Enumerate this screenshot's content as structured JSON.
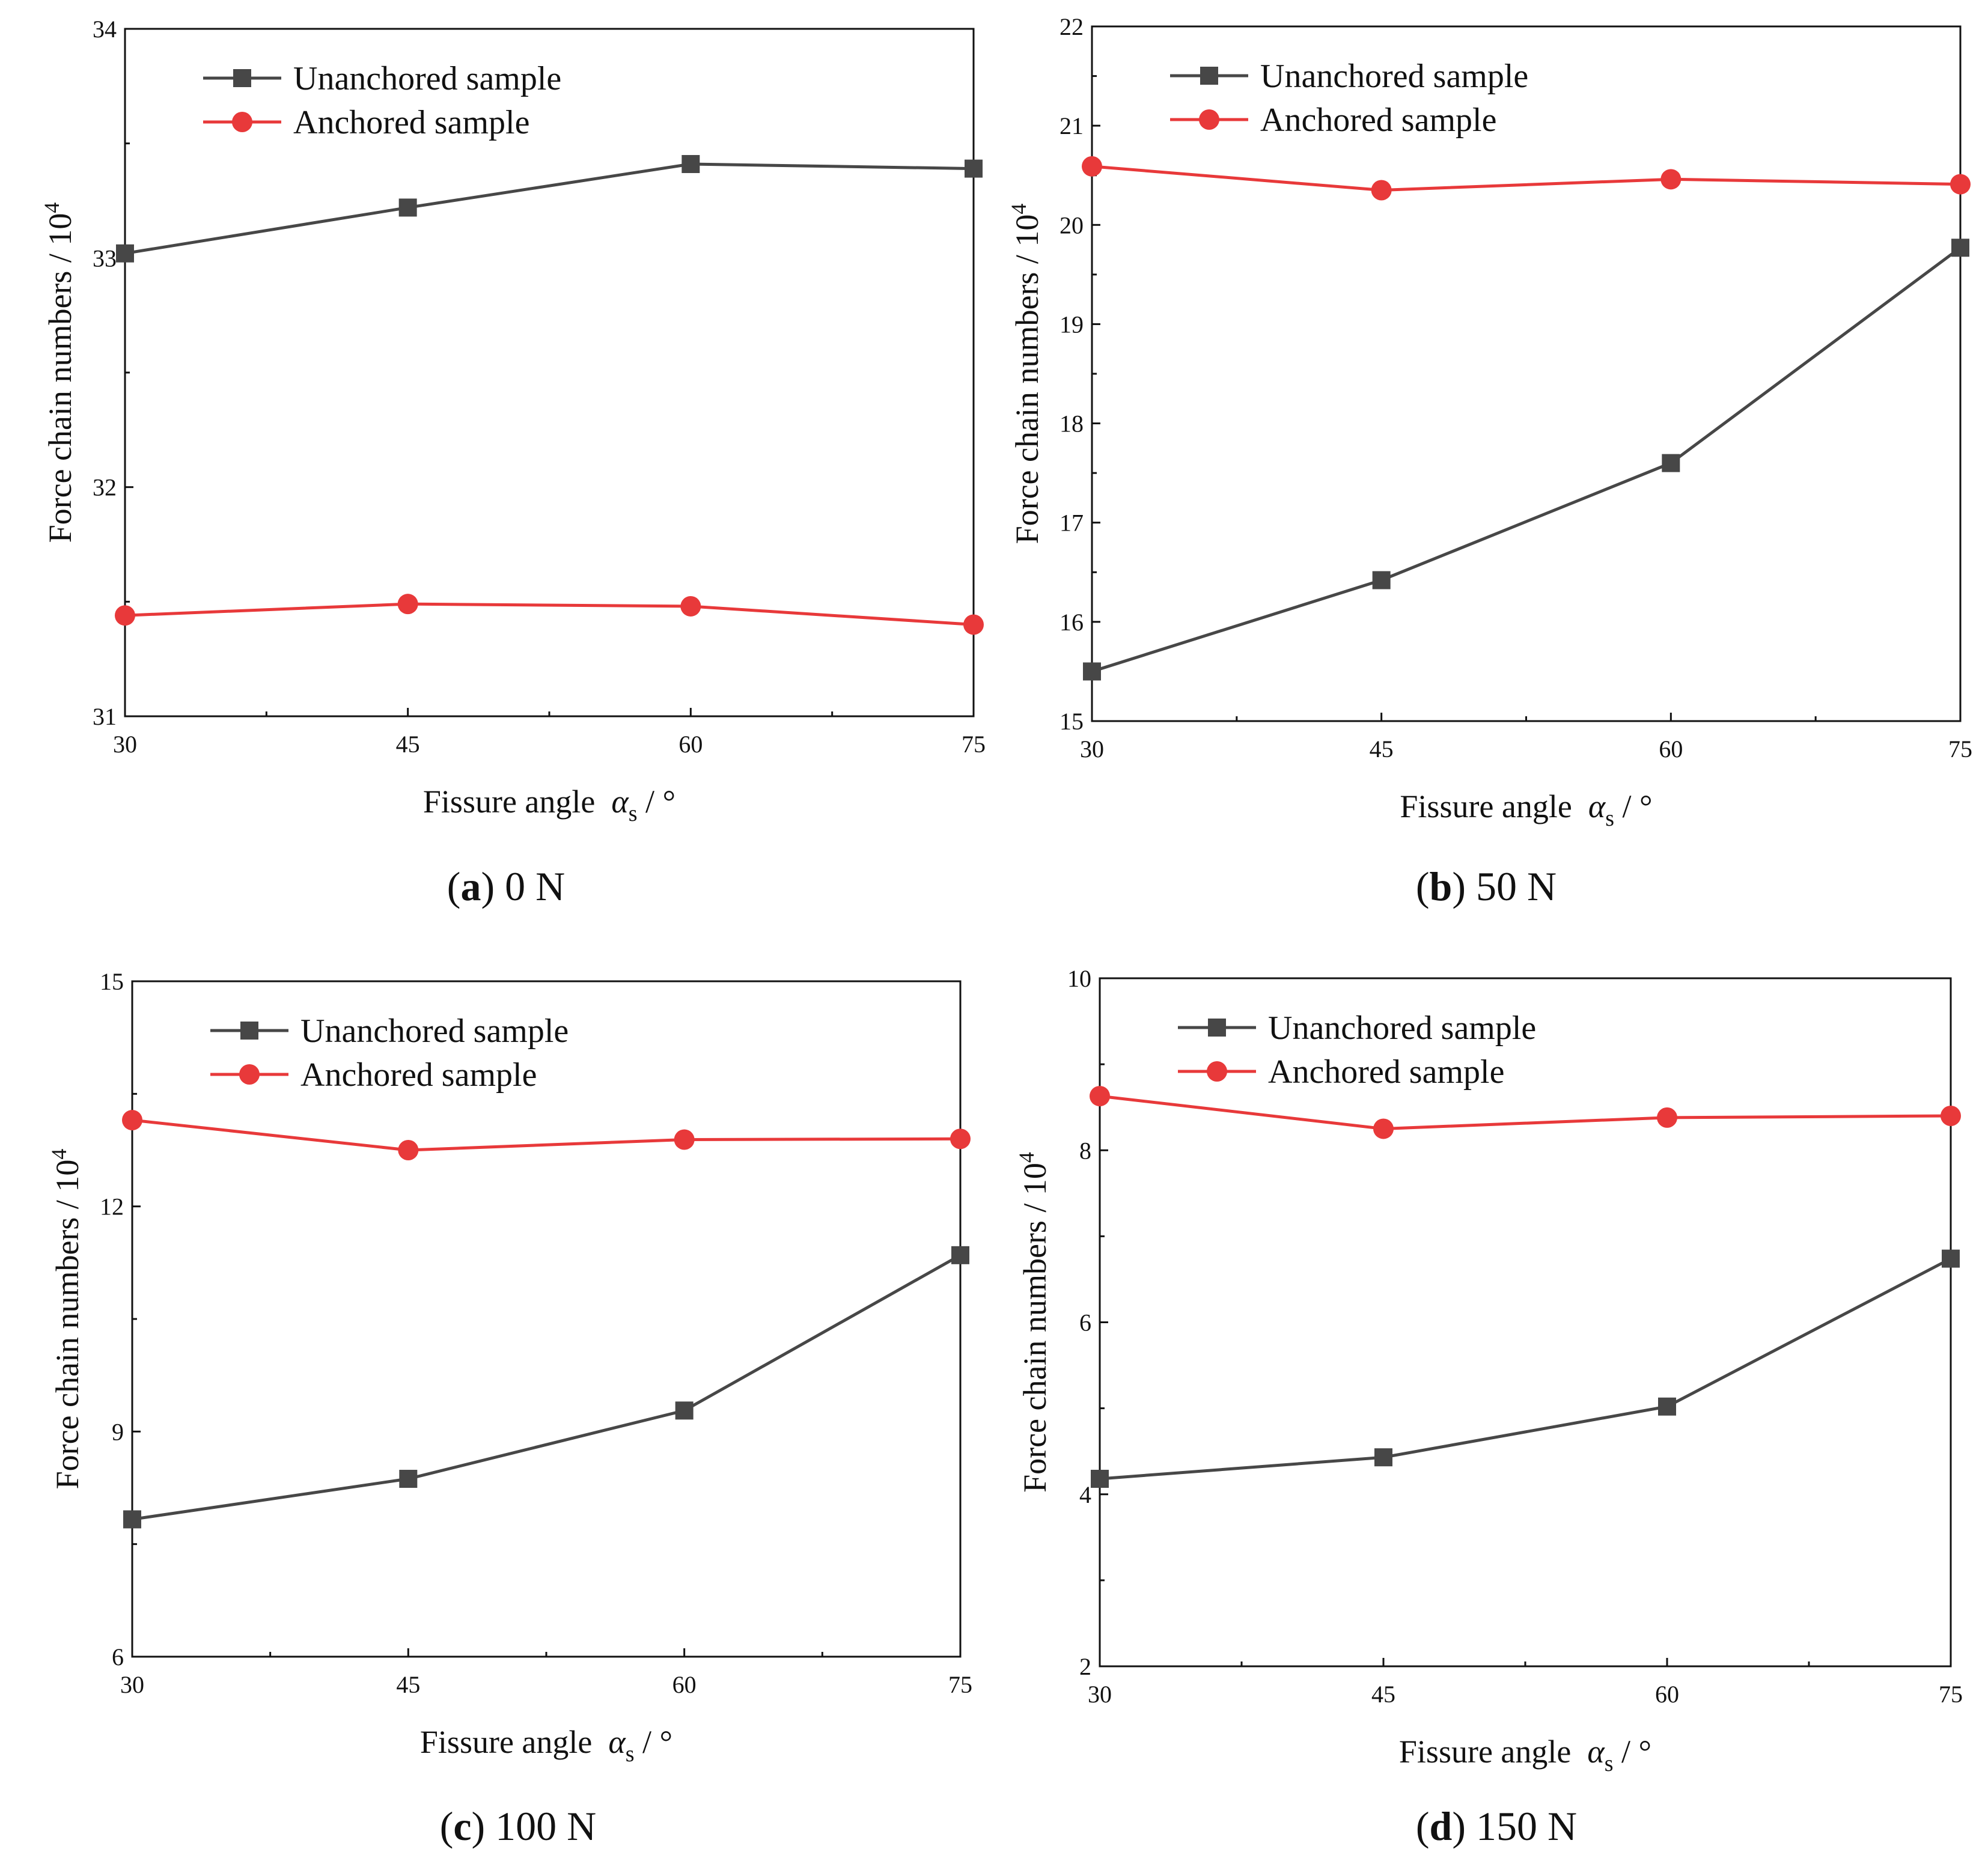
{
  "panels": [
    {
      "caption": {
        "letter": "a",
        "text": ") 0 N"
      },
      "chart_data": {
        "type": "line",
        "x": [
          30,
          45,
          60,
          75
        ],
        "xticks": [
          "30",
          "45",
          "60",
          "75"
        ],
        "xlim": [
          30,
          75
        ],
        "ylim": [
          31,
          34
        ],
        "yticks": [
          "31",
          "32",
          "33",
          "34"
        ],
        "xlabel": "Fissure angle",
        "xlabel_symbol": "α",
        "xlabel_sub": "s",
        "xlabel_unit": " / °",
        "ylabel": "Force chain numbers / 10",
        "ylabel_sup": "4",
        "legend_position": "top-left",
        "series": [
          {
            "name": "Unanchored sample",
            "marker": "square",
            "color": "#474747",
            "values": [
              33.02,
              33.22,
              33.41,
              33.39
            ]
          },
          {
            "name": "Anchored sample",
            "marker": "circle",
            "color": "#e8393a",
            "values": [
              31.44,
              31.49,
              31.48,
              31.4
            ]
          }
        ]
      }
    },
    {
      "caption": {
        "letter": "b",
        "text": ") 50 N"
      },
      "chart_data": {
        "type": "line",
        "x": [
          30,
          45,
          60,
          75
        ],
        "xticks": [
          "30",
          "45",
          "60",
          "75"
        ],
        "xlim": [
          30,
          75
        ],
        "ylim": [
          15,
          22
        ],
        "yticks": [
          "15",
          "16",
          "17",
          "18",
          "19",
          "20",
          "21",
          "22"
        ],
        "xlabel": "Fissure angle",
        "xlabel_symbol": "α",
        "xlabel_sub": "s",
        "xlabel_unit": " / °",
        "ylabel": "Force chain numbers / 10",
        "ylabel_sup": "4",
        "legend_position": "top-left",
        "series": [
          {
            "name": "Unanchored sample",
            "marker": "square",
            "color": "#474747",
            "values": [
              15.5,
              16.42,
              17.6,
              19.77
            ]
          },
          {
            "name": "Anchored sample",
            "marker": "circle",
            "color": "#e8393a",
            "values": [
              20.59,
              20.35,
              20.46,
              20.41
            ]
          }
        ]
      }
    },
    {
      "caption": {
        "letter": "c",
        "text": ") 100 N"
      },
      "chart_data": {
        "type": "line",
        "x": [
          30,
          45,
          60,
          75
        ],
        "xticks": [
          "30",
          "45",
          "60",
          "75"
        ],
        "xlim": [
          30,
          75
        ],
        "ylim": [
          6,
          15
        ],
        "yticks": [
          "6",
          "9",
          "12",
          "15"
        ],
        "xlabel": "Fissure angle",
        "xlabel_symbol": "α",
        "xlabel_sub": "s",
        "xlabel_unit": " / °",
        "ylabel": "Force chain numbers / 10",
        "ylabel_sup": "4",
        "legend_position": "top-left",
        "series": [
          {
            "name": "Unanchored sample",
            "marker": "square",
            "color": "#474747",
            "values": [
              7.83,
              8.37,
              9.28,
              11.35
            ]
          },
          {
            "name": "Anchored sample",
            "marker": "circle",
            "color": "#e8393a",
            "values": [
              13.15,
              12.75,
              12.89,
              12.9
            ]
          }
        ]
      }
    },
    {
      "caption": {
        "letter": "d",
        "text": ") 150 N"
      },
      "chart_data": {
        "type": "line",
        "x": [
          30,
          45,
          60,
          75
        ],
        "xticks": [
          "30",
          "45",
          "60",
          "75"
        ],
        "xlim": [
          30,
          75
        ],
        "ylim": [
          2,
          10
        ],
        "yticks": [
          "2",
          "4",
          "6",
          "8",
          "10"
        ],
        "xlabel": "Fissure angle",
        "xlabel_symbol": "α",
        "xlabel_sub": "s",
        "xlabel_unit": " / °",
        "ylabel": "Force chain numbers / 10",
        "ylabel_sup": "4",
        "legend_position": "top-left",
        "series": [
          {
            "name": "Unanchored sample",
            "marker": "square",
            "color": "#474747",
            "values": [
              4.18,
              4.43,
              5.02,
              6.74
            ]
          },
          {
            "name": "Anchored sample",
            "marker": "circle",
            "color": "#e8393a",
            "values": [
              8.63,
              8.25,
              8.38,
              8.4
            ]
          }
        ]
      }
    }
  ]
}
